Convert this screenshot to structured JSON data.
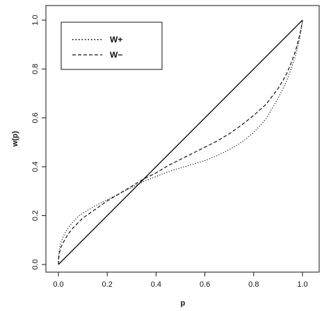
{
  "chart_data": {
    "type": "line",
    "xlabel": "p",
    "ylabel": "w(p)",
    "xlim": [
      0.0,
      1.0
    ],
    "ylim": [
      0.0,
      1.0
    ],
    "x_ticks": [
      0.0,
      0.2,
      0.4,
      0.6,
      0.8,
      1.0
    ],
    "y_ticks": [
      0.0,
      0.2,
      0.4,
      0.6,
      0.8,
      1.0
    ],
    "x_tick_labels": [
      "0.0",
      "0.2",
      "0.4",
      "0.6",
      "0.8",
      "1.0"
    ],
    "y_tick_labels": [
      "0.0",
      "0.2",
      "0.4",
      "0.6",
      "0.8",
      "1.0"
    ],
    "grid": false,
    "legend_position": "top-left",
    "series": [
      {
        "style": "solid",
        "x": [
          0.0,
          1.0
        ],
        "y": [
          0.0,
          1.0
        ]
      },
      {
        "name": "W+",
        "style": "dotted",
        "x": [
          0.0,
          0.001,
          0.005,
          0.01,
          0.02,
          0.04,
          0.06,
          0.08,
          0.1,
          0.15,
          0.2,
          0.25,
          0.3,
          0.35,
          0.4,
          0.45,
          0.5,
          0.55,
          0.6,
          0.65,
          0.7,
          0.75,
          0.8,
          0.85,
          0.9,
          0.93,
          0.95,
          0.97,
          0.98,
          0.99,
          0.995,
          1.0
        ],
        "y": [
          0.0,
          0.04,
          0.07,
          0.09,
          0.115,
          0.15,
          0.175,
          0.195,
          0.21,
          0.24,
          0.265,
          0.29,
          0.315,
          0.34,
          0.36,
          0.38,
          0.395,
          0.41,
          0.425,
          0.445,
          0.47,
          0.5,
          0.54,
          0.595,
          0.68,
          0.74,
          0.79,
          0.85,
          0.89,
          0.935,
          0.965,
          1.0
        ]
      },
      {
        "name": "W−",
        "style": "dashed",
        "x": [
          0.0,
          0.001,
          0.005,
          0.01,
          0.02,
          0.04,
          0.06,
          0.08,
          0.1,
          0.15,
          0.2,
          0.25,
          0.3,
          0.35,
          0.4,
          0.45,
          0.5,
          0.55,
          0.6,
          0.65,
          0.7,
          0.75,
          0.8,
          0.85,
          0.9,
          0.93,
          0.95,
          0.97,
          0.98,
          0.99,
          0.995,
          1.0
        ],
        "y": [
          0.0,
          0.025,
          0.05,
          0.07,
          0.09,
          0.125,
          0.15,
          0.17,
          0.19,
          0.225,
          0.26,
          0.29,
          0.32,
          0.35,
          0.375,
          0.405,
          0.43,
          0.455,
          0.48,
          0.505,
          0.535,
          0.57,
          0.61,
          0.655,
          0.72,
          0.77,
          0.815,
          0.87,
          0.905,
          0.945,
          0.97,
          1.0
        ]
      }
    ],
    "legend": [
      {
        "label": "W+",
        "style": "dotted"
      },
      {
        "label": "W−",
        "style": "dashed"
      }
    ]
  }
}
